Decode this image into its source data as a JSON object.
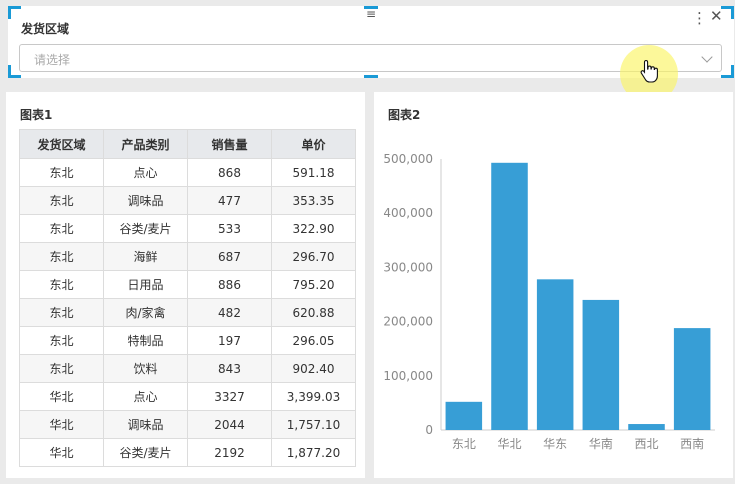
{
  "filter": {
    "title": "发货区域",
    "placeholder": "请选择",
    "handle_icon": "≡",
    "more_icon": "⋮",
    "close_icon": "✕"
  },
  "table_panel": {
    "title": "图表1",
    "columns": [
      "发货区域",
      "产品类别",
      "销售量",
      "单价"
    ],
    "rows": [
      [
        "东北",
        "点心",
        "868",
        "591.18"
      ],
      [
        "东北",
        "调味品",
        "477",
        "353.35"
      ],
      [
        "东北",
        "谷类/麦片",
        "533",
        "322.90"
      ],
      [
        "东北",
        "海鲜",
        "687",
        "296.70"
      ],
      [
        "东北",
        "日用品",
        "886",
        "795.20"
      ],
      [
        "东北",
        "肉/家禽",
        "482",
        "620.88"
      ],
      [
        "东北",
        "特制品",
        "197",
        "296.05"
      ],
      [
        "东北",
        "饮料",
        "843",
        "902.40"
      ],
      [
        "华北",
        "点心",
        "3327",
        "3,399.03"
      ],
      [
        "华北",
        "调味品",
        "2044",
        "1,757.10"
      ],
      [
        "华北",
        "谷类/麦片",
        "2192",
        "1,877.20"
      ]
    ]
  },
  "chart_panel": {
    "title": "图表2"
  },
  "chart_data": {
    "type": "bar",
    "categories": [
      "东北",
      "华北",
      "华东",
      "华南",
      "西北",
      "西南"
    ],
    "values": [
      52000,
      493000,
      278000,
      240000,
      11000,
      188000
    ],
    "ylim": [
      0,
      500000
    ],
    "yticks": [
      0,
      100000,
      200000,
      300000,
      400000,
      500000
    ],
    "ytick_labels": [
      "0",
      "100,000",
      "200,000",
      "300,000",
      "400,000",
      "500,000"
    ],
    "bar_color": "#379ed6",
    "grid": false,
    "legend": "none"
  }
}
